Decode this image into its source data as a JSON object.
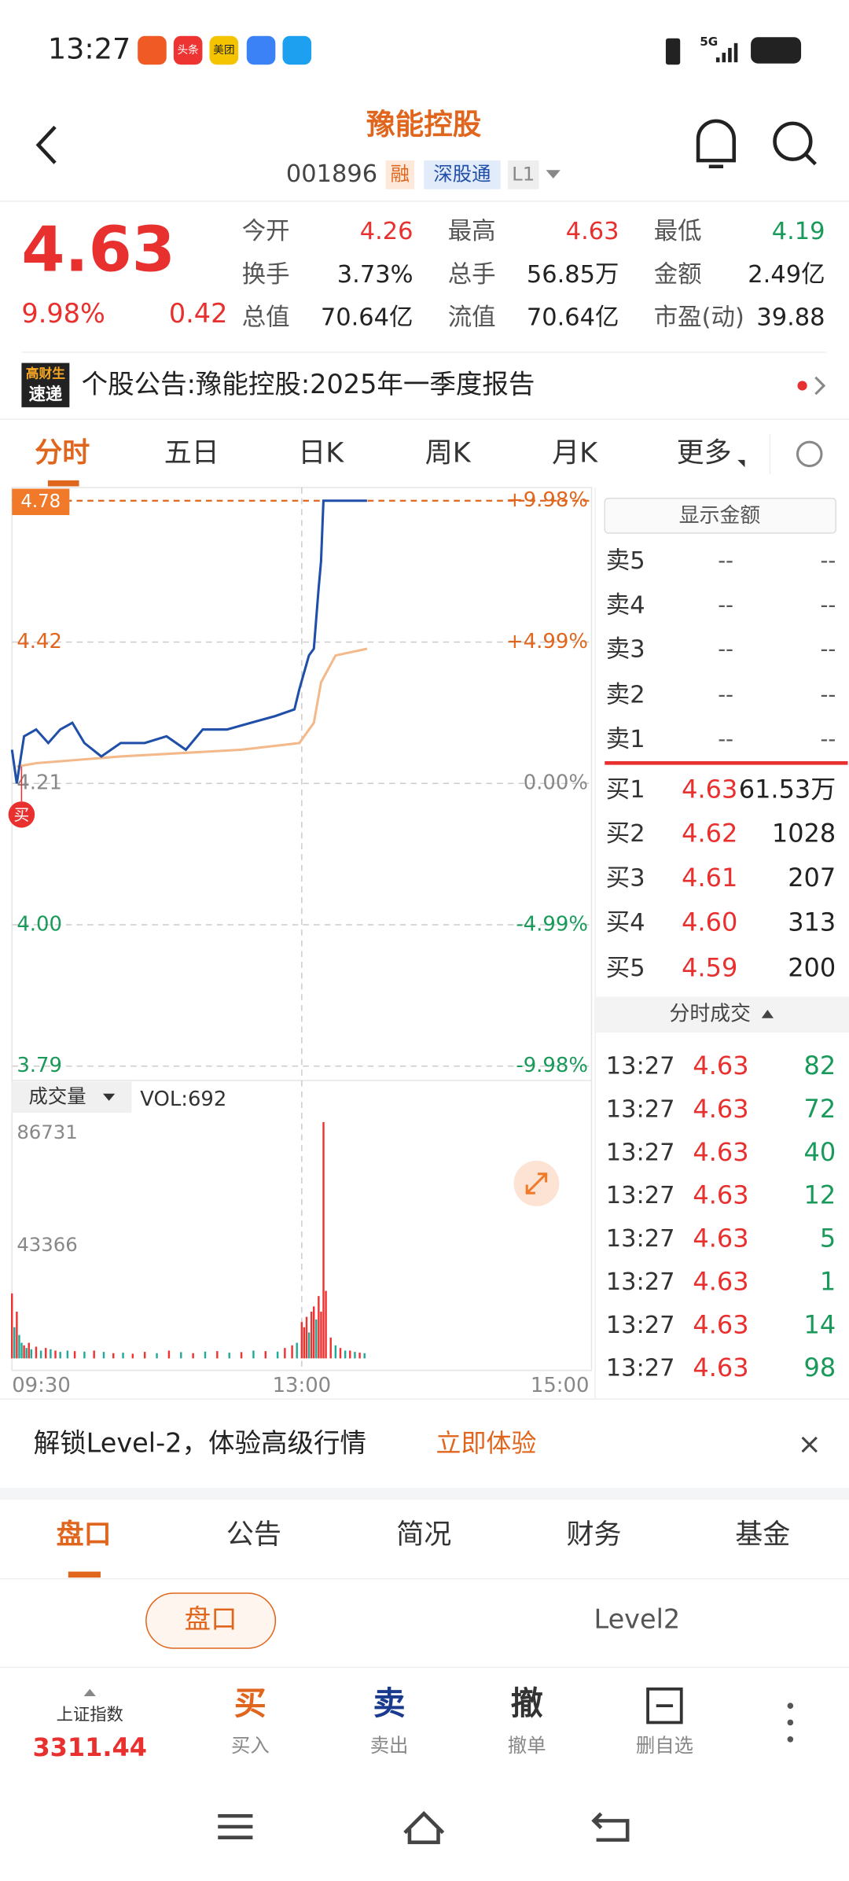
{
  "status_bar": {
    "time": "13:27",
    "app_icons": [
      "头条",
      "美团"
    ],
    "network": "5G"
  },
  "header": {
    "title": "豫能控股",
    "code": "001896",
    "tags": [
      "融",
      "深股通",
      "L1"
    ]
  },
  "quote": {
    "price": "4.63",
    "change_pct": "9.98%",
    "change": "0.42",
    "stats": [
      [
        {
          "label": "今开",
          "value": "4.26",
          "color": "#e8302f"
        },
        {
          "label": "最高",
          "value": "4.63",
          "color": "#e8302f"
        },
        {
          "label": "最低",
          "value": "4.19",
          "color": "#1a9a5a"
        }
      ],
      [
        {
          "label": "换手",
          "value": "3.73%"
        },
        {
          "label": "总手",
          "value": "56.85万"
        },
        {
          "label": "金额",
          "value": "2.49亿"
        }
      ],
      [
        {
          "label": "总值",
          "value": "70.64亿"
        },
        {
          "label": "流值",
          "value": "70.64亿"
        },
        {
          "label": "市盈(动)",
          "value": "39.88"
        }
      ]
    ]
  },
  "news": {
    "badge_top": "高财生",
    "badge_bottom": "速递",
    "text": "个股公告:豫能控股:2025年一季度报告"
  },
  "chart_tabs": [
    "分时",
    "五日",
    "日K",
    "周K",
    "月K",
    "更多"
  ],
  "intraday": {
    "cursor_label": "4.78",
    "ylim": [
      3.79,
      4.63
    ],
    "yticks": [
      4.42,
      4.21,
      {
        "value": 4,
        "label": "4.00"
      },
      3.79
    ],
    "y2lim": [
      -9.98,
      9.98
    ],
    "y2ticks": [
      {
        "value": 9.98,
        "label": "+9.98%"
      },
      {
        "value": 4.99,
        "label": "+4.99%"
      },
      {
        "value": 0,
        "label": "0.00%"
      },
      {
        "value": -4.99,
        "label": "-4.99%"
      },
      {
        "value": -9.98,
        "label": "-9.98%"
      }
    ],
    "xlim": [
      0,
      240
    ],
    "xticks": [
      {
        "value": 0,
        "label": "09:30"
      },
      {
        "value": 120,
        "label": "13:00"
      },
      {
        "value": 240,
        "label": "15:00"
      }
    ],
    "buy_marker": "买",
    "price": {
      "color": "#1f4fa8",
      "minutes": [
        0,
        2,
        5,
        10,
        15,
        20,
        25,
        30,
        37,
        45,
        55,
        64,
        72,
        79,
        89,
        99,
        109,
        117,
        119,
        123,
        125,
        127,
        128,
        129,
        147
      ],
      "values": [
        4.26,
        4.21,
        4.28,
        4.29,
        4.27,
        4.29,
        4.3,
        4.27,
        4.25,
        4.27,
        4.27,
        4.28,
        4.26,
        4.29,
        4.29,
        4.3,
        4.31,
        4.32,
        4.35,
        4.4,
        4.41,
        4.5,
        4.54,
        4.63,
        4.63
      ]
    },
    "average": {
      "color": "#f3b98a",
      "minutes": [
        2,
        10,
        45,
        95,
        119,
        125,
        128,
        134,
        147
      ],
      "values": [
        4.235,
        4.24,
        4.25,
        4.26,
        4.27,
        4.3,
        4.36,
        4.4,
        4.41
      ]
    },
    "volume_label": "成交量",
    "vol_text": "VOL:692",
    "vol_lim": [
      0,
      86731
    ],
    "vol_ticks": [
      86731,
      43366
    ],
    "volume": {
      "minutes": [
        0,
        1,
        2,
        3,
        4,
        5,
        6,
        7,
        8,
        10,
        12,
        14,
        16,
        18,
        20,
        23,
        26,
        30,
        34,
        38,
        42,
        46,
        50,
        55,
        60,
        65,
        70,
        75,
        80,
        85,
        90,
        95,
        100,
        105,
        110,
        113,
        116,
        118,
        120,
        121,
        122,
        123,
        124,
        125,
        126,
        127,
        128,
        129,
        130,
        132,
        134,
        136,
        138,
        140,
        142,
        144,
        146
      ],
      "values": [
        25000,
        12000,
        18000,
        9000,
        6000,
        5000,
        4000,
        6000,
        3500,
        4500,
        3000,
        4000,
        3500,
        3000,
        2500,
        3000,
        2800,
        2600,
        3000,
        2500,
        2000,
        2200,
        1800,
        2500,
        2000,
        3000,
        2400,
        2000,
        2600,
        2800,
        2200,
        2400,
        3000,
        2800,
        2600,
        4000,
        5000,
        6000,
        14000,
        12000,
        16000,
        10000,
        18000,
        20000,
        15000,
        24000,
        18000,
        91000,
        26000,
        8000,
        5000,
        4000,
        3000,
        3000,
        2500,
        2200,
        2000
      ],
      "colors": [
        "#e33",
        "#2a9",
        "#e33",
        "#2a9",
        "#2a9",
        "#e33",
        "#2a9",
        "#e33",
        "#2a9",
        "#e33",
        "#2a9",
        "#e33",
        "#2a9",
        "#e33",
        "#2a9",
        "#2a9",
        "#e33",
        "#2a9",
        "#e33",
        "#2a9",
        "#e33",
        "#2a9",
        "#e33",
        "#e33",
        "#2a9",
        "#e33",
        "#2a9",
        "#e33",
        "#2a9",
        "#e33",
        "#2a9",
        "#e33",
        "#2a9",
        "#e33",
        "#2a9",
        "#e33",
        "#e33",
        "#2a9",
        "#e33",
        "#e33",
        "#e33",
        "#2a9",
        "#e33",
        "#e33",
        "#2a9",
        "#e33",
        "#e33",
        "#e33",
        "#e33",
        "#e33",
        "#2a9",
        "#e33",
        "#2a9",
        "#e33",
        "#2a9",
        "#e33",
        "#2a9"
      ]
    }
  },
  "order_book": {
    "toggle": "显示金额",
    "asks": [
      {
        "label": "卖5",
        "price": "--",
        "volume": "--"
      },
      {
        "label": "卖4",
        "price": "--",
        "volume": "--"
      },
      {
        "label": "卖3",
        "price": "--",
        "volume": "--"
      },
      {
        "label": "卖2",
        "price": "--",
        "volume": "--"
      },
      {
        "label": "卖1",
        "price": "--",
        "volume": "--"
      }
    ],
    "bids": [
      {
        "label": "买1",
        "price": "4.63",
        "volume": "61.53万"
      },
      {
        "label": "买2",
        "price": "4.62",
        "volume": "1028"
      },
      {
        "label": "买3",
        "price": "4.61",
        "volume": "207"
      },
      {
        "label": "买4",
        "price": "4.60",
        "volume": "313"
      },
      {
        "label": "买5",
        "price": "4.59",
        "volume": "200"
      }
    ]
  },
  "trades": {
    "title": "分时成交",
    "rows": [
      [
        "13:27",
        "4.63",
        "82"
      ],
      [
        "13:27",
        "4.63",
        "72"
      ],
      [
        "13:27",
        "4.63",
        "40"
      ],
      [
        "13:27",
        "4.63",
        "12"
      ],
      [
        "13:27",
        "4.63",
        "5"
      ],
      [
        "13:27",
        "4.63",
        "1"
      ],
      [
        "13:27",
        "4.63",
        "14"
      ],
      [
        "13:27",
        "4.63",
        "98"
      ]
    ]
  },
  "banner": {
    "text": "解锁Level-2，体验高级行情",
    "action": "立即体验"
  },
  "bottom_tabs": [
    "盘口",
    "公告",
    "简况",
    "财务",
    "基金"
  ],
  "sub_tabs": [
    "盘口",
    "Level2"
  ],
  "toolbar": {
    "index_name": "上证指数",
    "index_value": "3311.44",
    "actions": [
      {
        "icon": "买",
        "label": "买入"
      },
      {
        "icon": "卖",
        "label": "卖出"
      },
      {
        "icon": "撤",
        "label": "撤单"
      },
      {
        "label": "删自选"
      }
    ]
  }
}
